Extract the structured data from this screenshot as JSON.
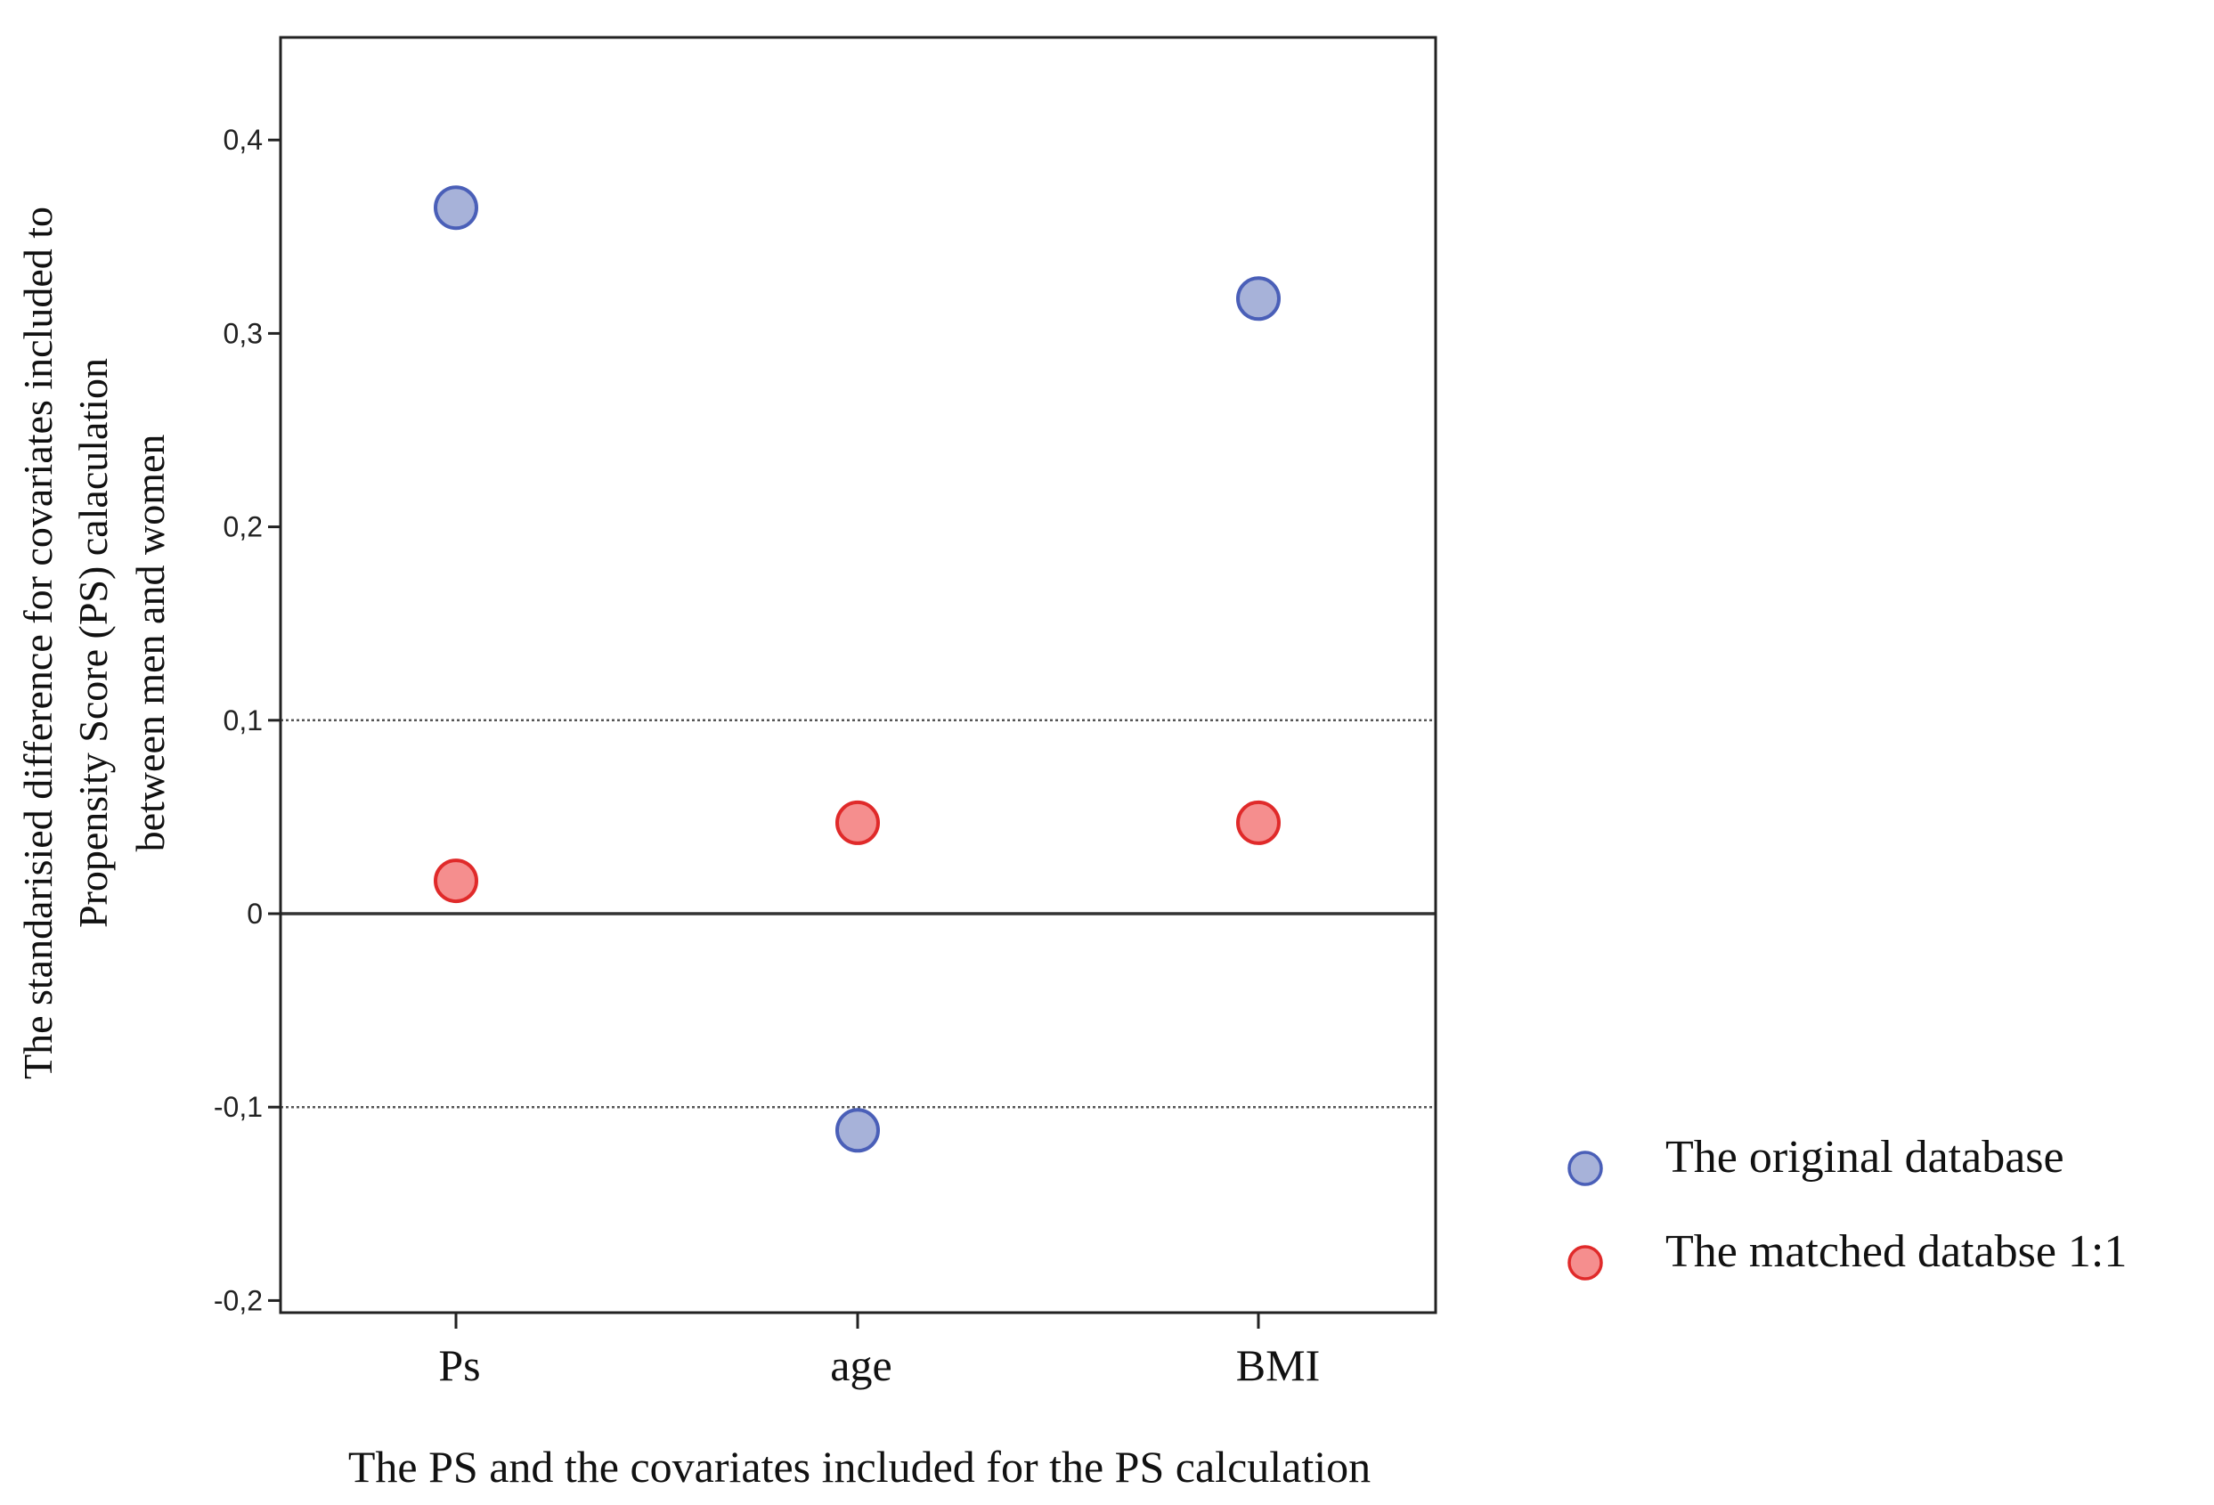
{
  "chart_data": {
    "type": "scatter",
    "title": "",
    "xlabel": "The PS and the covariates included for the PS calculation",
    "ylabel_lines": [
      "The standarisied difference for covariates included to",
      "Propensity Score (PS) calaculation",
      "between men and women"
    ],
    "categories": [
      "Ps",
      "age",
      "BMI"
    ],
    "ylim": [
      -0.2,
      0.45
    ],
    "yticks": [
      {
        "value": 0.4,
        "label": "0,4"
      },
      {
        "value": 0.3,
        "label": "0,3"
      },
      {
        "value": 0.2,
        "label": "0,2"
      },
      {
        "value": 0.1,
        "label": "0,1"
      },
      {
        "value": 0,
        "label": "0"
      },
      {
        "value": -0.1,
        "label": "-0,1"
      },
      {
        "value": -0.2,
        "label": "-0,2"
      }
    ],
    "reference_lines": [
      {
        "value": 0,
        "style": "solid"
      },
      {
        "value": 0.1,
        "style": "dotted"
      },
      {
        "value": -0.1,
        "style": "dotted"
      }
    ],
    "grid": false,
    "legend_position": "bottom-right outside",
    "series": [
      {
        "name": "The original database",
        "color": "#a7b2d9",
        "edge": "#4a5fb8",
        "values": [
          0.365,
          -0.112,
          0.318
        ]
      },
      {
        "name": "The matched databse 1:1",
        "color": "#f58e8e",
        "edge": "#e02a2a",
        "values": [
          0.017,
          0.047,
          0.047
        ]
      }
    ]
  }
}
